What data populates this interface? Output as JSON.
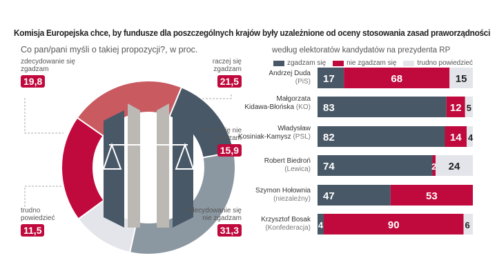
{
  "title": "Komisja Europejska chce, by fundusze dla poszczególnych krajów były uzależnione od oceny stosowania zasad praworządności",
  "chart_data": [
    {
      "type": "pie",
      "subtitle": "Co pan/pani myśli o takiej propozycji?, w proc.",
      "slices": [
        {
          "label": "raczej się zgadzam",
          "value": 21.5,
          "color": "#c85a60"
        },
        {
          "label": "raczej się nie zgadzam",
          "value": 15.9,
          "color": "#485867"
        },
        {
          "label": "zdecydowanie się nie zgadzam",
          "value": 31.3,
          "color": "#8b97a1"
        },
        {
          "label": "trudno powiedzieć",
          "value": 11.5,
          "color": "#e4e5ea"
        },
        {
          "label": "zdecydowanie się zgadzam",
          "value": 19.8,
          "color": "#c0093c"
        }
      ],
      "value_labels": [
        "21,5",
        "15,9",
        "31,3",
        "11,5",
        "19,8"
      ]
    },
    {
      "type": "bar",
      "stacked": true,
      "orientation": "horizontal",
      "subtitle": "według elektoratów kandydatów na prezydenta RP",
      "legend": [
        {
          "name": "zgadzam się",
          "color": "#485867"
        },
        {
          "name": "nie zgadzam się",
          "color": "#c0093c"
        },
        {
          "name": "trudno powiedzieć",
          "color": "#e4e5ea"
        }
      ],
      "categories": [
        {
          "name": "Andrzej Duda",
          "party": "(PiS)"
        },
        {
          "name": "Małgorzata",
          "name2": "Kidawa-Błońska",
          "party": "(KO)"
        },
        {
          "name": "Władysław",
          "name2": "Kosiniak-Kamysz",
          "party": "(PSL)"
        },
        {
          "name": "Robert Biedroń",
          "party": "(Lewica)"
        },
        {
          "name": "Szymon Hołownia",
          "party": "(niezależny)"
        },
        {
          "name": "Krzysztof Bosak",
          "party": "(Konfederacja)"
        }
      ],
      "series": [
        {
          "name": "zgadzam się",
          "values": [
            17,
            83,
            82,
            74,
            47,
            4
          ]
        },
        {
          "name": "nie zgadzam się",
          "values": [
            68,
            12,
            14,
            2,
            53,
            90
          ]
        },
        {
          "name": "trudno powiedzieć",
          "values": [
            15,
            5,
            4,
            24,
            0,
            6
          ]
        }
      ]
    }
  ]
}
